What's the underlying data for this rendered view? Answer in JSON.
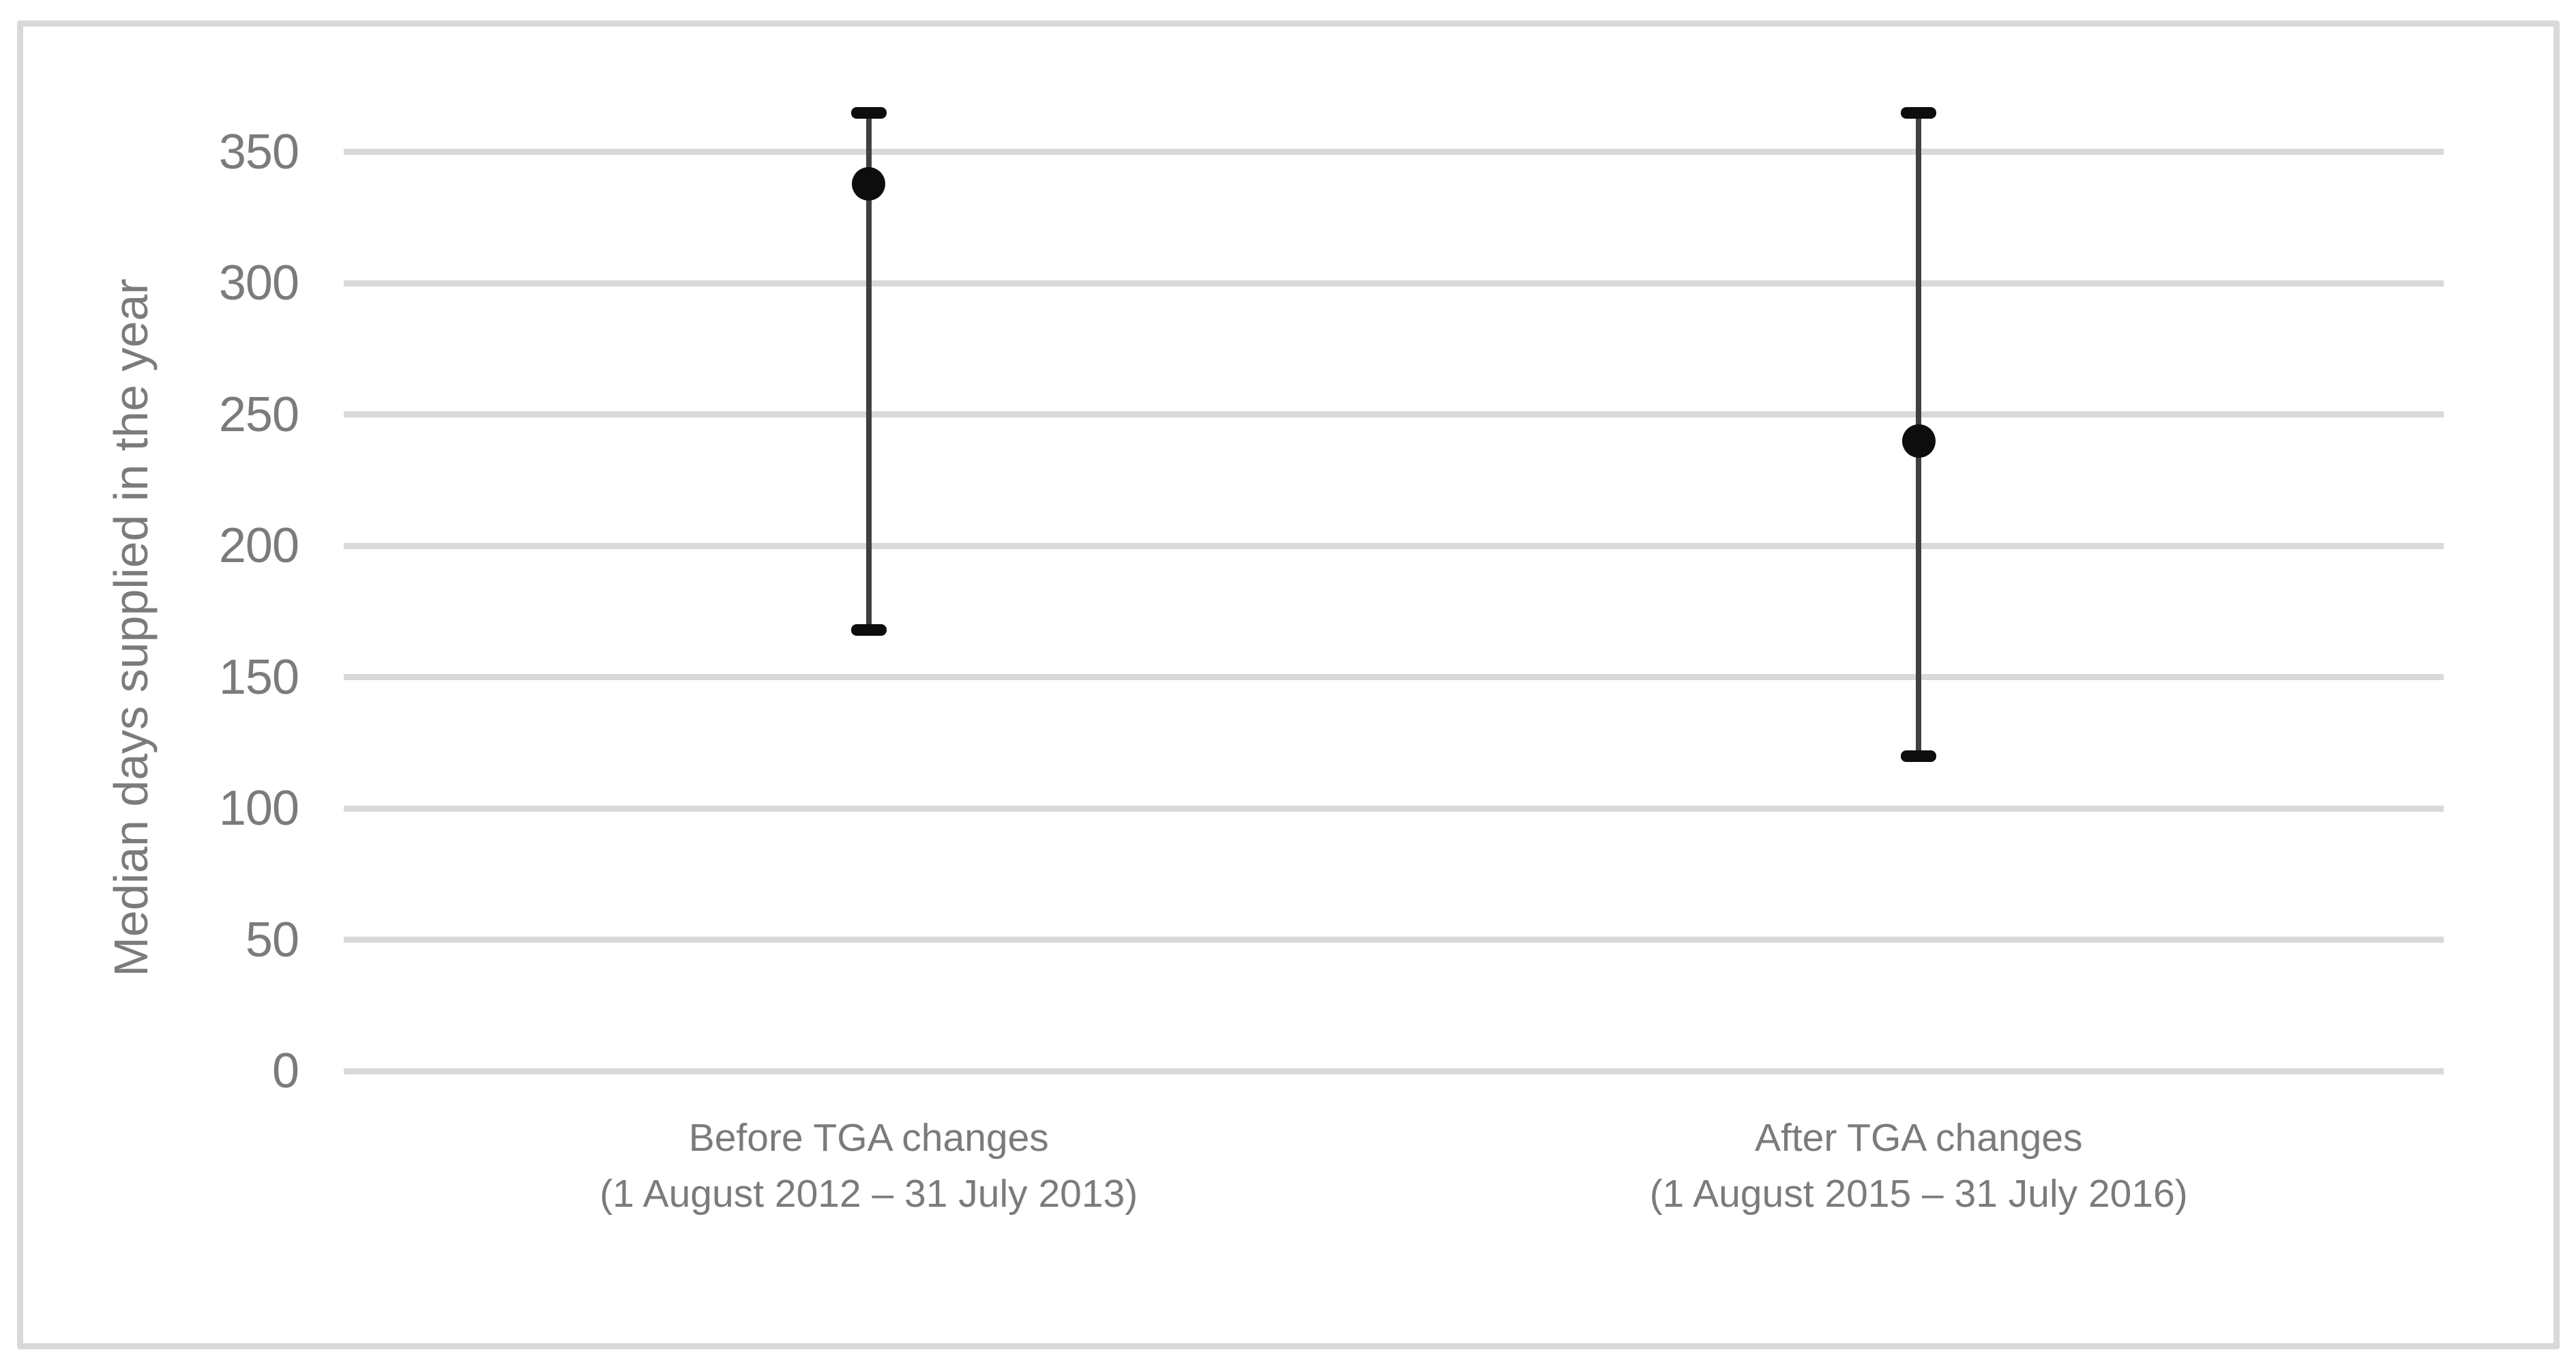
{
  "figure": {
    "background_color": "#ffffff",
    "border_color": "#d9d9d9"
  },
  "chart_data": {
    "type": "scatter",
    "subtype": "point-with-error-bars",
    "title": "",
    "xlabel": "",
    "ylabel": "Median days supplied in the year",
    "ylim": [
      0,
      365
    ],
    "yticks": [
      350,
      300,
      250,
      200,
      150,
      100,
      50,
      0
    ],
    "grid": "horizontal-only",
    "legend": "none",
    "categories": [
      {
        "label_line1": "Before TGA changes",
        "label_line2": "(1 August 2012 – 31 July 2013)"
      },
      {
        "label_line1": "After TGA changes",
        "label_line2": "(1 August 2015 – 31 July 2016)"
      }
    ],
    "series": [
      {
        "name": "Median days supplied in the year",
        "points": [
          {
            "category_index": 0,
            "median": 338,
            "upper": 365,
            "lower": 168
          },
          {
            "category_index": 1,
            "median": 240,
            "upper": 365,
            "lower": 120
          }
        ]
      }
    ],
    "colors": {
      "gridline": "#d9d9d9",
      "tick_label": "#7b7b7b",
      "axis_title": "#7b7b7b",
      "category_label": "#7b7b7b",
      "error_bar_line": "#404040",
      "error_bar_cap": "#0d0d0d",
      "marker": "#0d0d0d"
    }
  }
}
